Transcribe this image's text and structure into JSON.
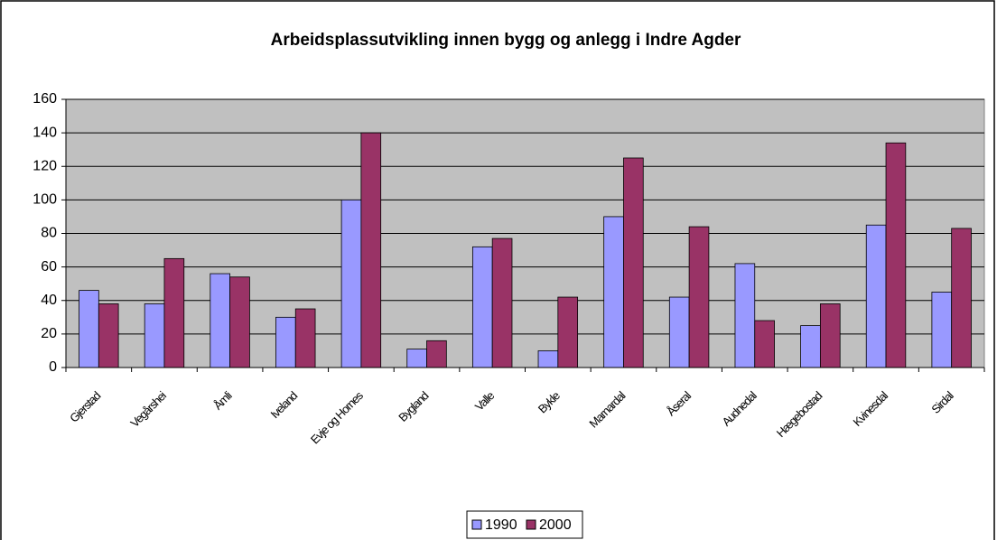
{
  "chart_data": {
    "type": "bar",
    "title": "Arbeidsplassutvikling innen bygg og anlegg i Indre Agder",
    "categories": [
      "Gjerstad",
      "Vegårshei",
      "Åmli",
      "Iveland",
      "Evje og Hornes",
      "Bygland",
      "Valle",
      "Bykle",
      "Marnardal",
      "Åseral",
      "Audnedal",
      "Hægebostad",
      "Kvinesdal",
      "Sirdal"
    ],
    "series": [
      {
        "name": "1990",
        "color": "#9999ff",
        "values": [
          46,
          38,
          56,
          30,
          100,
          11,
          72,
          10,
          90,
          42,
          62,
          25,
          85,
          45
        ]
      },
      {
        "name": "2000",
        "color": "#993366",
        "values": [
          38,
          65,
          54,
          35,
          140,
          16,
          77,
          42,
          125,
          84,
          28,
          38,
          134,
          83
        ]
      }
    ],
    "ylim": [
      0,
      160
    ],
    "yticks": [
      0,
      20,
      40,
      60,
      80,
      100,
      120,
      140,
      160
    ],
    "grid": true,
    "legend": "bottom"
  }
}
